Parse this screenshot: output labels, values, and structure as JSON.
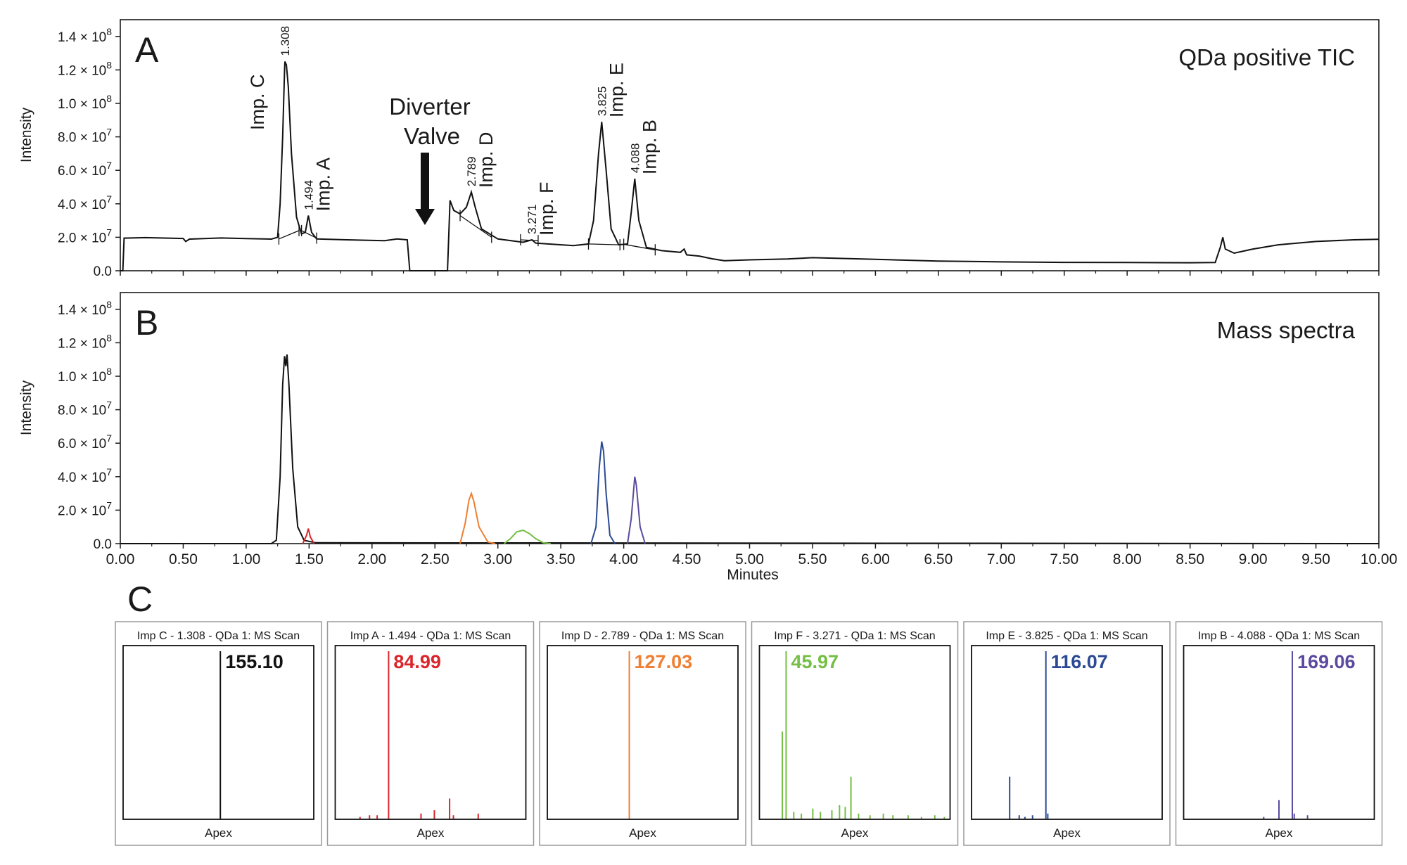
{
  "panels": {
    "a": {
      "letter": "A",
      "title": "QDa positive TIC"
    },
    "b": {
      "letter": "B",
      "title": "Mass spectra"
    },
    "c": {
      "letter": "C"
    }
  },
  "arrow": {
    "line1": "Diverter",
    "line2": "Valve"
  },
  "colors": {
    "black": "#111111",
    "red": "#d9252b",
    "orange": "#ee7f33",
    "green": "#74bf44",
    "blue": "#2b4a94",
    "purple": "#5b4a9e"
  },
  "chart_data": [
    {
      "id": "A",
      "type": "line",
      "title": "QDa positive TIC",
      "xlabel": "",
      "ylabel": "Intensity",
      "xlim": [
        0,
        10
      ],
      "ylim": [
        0,
        150000000
      ],
      "xticks": [
        "0.00",
        "0.50",
        "1.00",
        "1.50",
        "2.00",
        "2.50",
        "3.00",
        "3.50",
        "4.00",
        "4.50",
        "5.00",
        "5.50",
        "6.00",
        "6.50",
        "7.00",
        "7.50",
        "8.00",
        "8.50",
        "9.00",
        "9.50",
        "10.00"
      ],
      "yticks": [
        {
          "value": 0,
          "label": "0.0"
        },
        {
          "value": 20000000,
          "mant": "2.0",
          "exp": "7"
        },
        {
          "value": 40000000,
          "mant": "4.0",
          "exp": "7"
        },
        {
          "value": 60000000,
          "mant": "6.0",
          "exp": "7"
        },
        {
          "value": 80000000,
          "mant": "8.0",
          "exp": "7"
        },
        {
          "value": 100000000,
          "mant": "1.0",
          "exp": "8"
        },
        {
          "value": 120000000,
          "mant": "1.2",
          "exp": "8"
        },
        {
          "value": 140000000,
          "mant": "1.4",
          "exp": "8"
        }
      ],
      "series": [
        {
          "points": [
            [
              0,
              0
            ],
            [
              0.02,
              0
            ],
            [
              0.03,
              19500000
            ],
            [
              0.2,
              19800000
            ],
            [
              0.5,
              19300000
            ],
            [
              0.52,
              17500000
            ],
            [
              0.55,
              18900000
            ],
            [
              0.8,
              19600000
            ],
            [
              1.0,
              19200000
            ],
            [
              1.2,
              18900000
            ],
            [
              1.25,
              20000000
            ],
            [
              1.27,
              40000000
            ],
            [
              1.29,
              80000000
            ],
            [
              1.305,
              120000000
            ],
            [
              1.308,
              125000000
            ],
            [
              1.32,
              123000000
            ],
            [
              1.335,
              110000000
            ],
            [
              1.36,
              70000000
            ],
            [
              1.4,
              32000000
            ],
            [
              1.44,
              22000000
            ],
            [
              1.47,
              23000000
            ],
            [
              1.494,
              33000000
            ],
            [
              1.52,
              23000000
            ],
            [
              1.56,
              19000000
            ],
            [
              1.8,
              18500000
            ],
            [
              2.1,
              18000000
            ],
            [
              2.2,
              19000000
            ],
            [
              2.28,
              18500000
            ],
            [
              2.3,
              0
            ],
            [
              2.6,
              0
            ],
            [
              2.62,
              42000000
            ],
            [
              2.65,
              36000000
            ],
            [
              2.7,
              34000000
            ],
            [
              2.75,
              38000000
            ],
            [
              2.789,
              47000000
            ],
            [
              2.82,
              38000000
            ],
            [
              2.87,
              25000000
            ],
            [
              3.0,
              19000000
            ],
            [
              3.2,
              17000000
            ],
            [
              3.271,
              18500000
            ],
            [
              3.3,
              16500000
            ],
            [
              3.6,
              15000000
            ],
            [
              3.72,
              16000000
            ],
            [
              3.76,
              30000000
            ],
            [
              3.8,
              70000000
            ],
            [
              3.825,
              89000000
            ],
            [
              3.86,
              60000000
            ],
            [
              3.9,
              25000000
            ],
            [
              3.96,
              15500000
            ],
            [
              4.03,
              16000000
            ],
            [
              4.06,
              35000000
            ],
            [
              4.088,
              55000000
            ],
            [
              4.12,
              30000000
            ],
            [
              4.18,
              14000000
            ],
            [
              4.3,
              12000000
            ],
            [
              4.45,
              11000000
            ],
            [
              4.48,
              13000000
            ],
            [
              4.5,
              9500000
            ],
            [
              4.6,
              8800000
            ],
            [
              4.7,
              7200000
            ],
            [
              4.8,
              6000000
            ],
            [
              5.0,
              6500000
            ],
            [
              5.3,
              7000000
            ],
            [
              5.5,
              7800000
            ],
            [
              6.0,
              6800000
            ],
            [
              6.5,
              5800000
            ],
            [
              7.0,
              5300000
            ],
            [
              7.5,
              5000000
            ],
            [
              8.0,
              4900000
            ],
            [
              8.5,
              4800000
            ],
            [
              8.7,
              4900000
            ],
            [
              8.74,
              14000000
            ],
            [
              8.76,
              20000000
            ],
            [
              8.78,
              13000000
            ],
            [
              8.85,
              10500000
            ],
            [
              9.0,
              13000000
            ],
            [
              9.2,
              15500000
            ],
            [
              9.5,
              17500000
            ],
            [
              9.8,
              18500000
            ],
            [
              10.0,
              18800000
            ]
          ]
        }
      ],
      "baselines": [
        [
          [
            1.26,
            19000000
          ],
          [
            1.42,
            24000000
          ]
        ],
        [
          [
            1.44,
            24000000
          ],
          [
            1.56,
            19500000
          ]
        ],
        [
          [
            2.7,
            33000000
          ],
          [
            2.95,
            20000000
          ]
        ],
        [
          [
            3.18,
            18500000
          ],
          [
            3.32,
            18000000
          ]
        ],
        [
          [
            3.72,
            16000000
          ],
          [
            3.97,
            15500000
          ]
        ],
        [
          [
            4.0,
            15800000
          ],
          [
            4.25,
            12500000
          ]
        ]
      ],
      "peaks": [
        {
          "name": "Imp. C",
          "rt": "1.308",
          "x": 1.308,
          "y": 125000000
        },
        {
          "name": "Imp. A",
          "rt": "1.494",
          "x": 1.494,
          "y": 33000000
        },
        {
          "name": "Imp. D",
          "rt": "2.789",
          "x": 2.789,
          "y": 47000000
        },
        {
          "name": "Imp. F",
          "rt": "3.271",
          "x": 3.271,
          "y": 18500000
        },
        {
          "name": "Imp. E",
          "rt": "3.825",
          "x": 3.825,
          "y": 89000000
        },
        {
          "name": "Imp. B",
          "rt": "4.088",
          "x": 4.088,
          "y": 55000000
        }
      ],
      "annotations": [
        {
          "text": "Diverter Valve",
          "x": 2.45,
          "y": 28000000
        }
      ]
    },
    {
      "id": "B",
      "type": "line",
      "title": "Mass spectra",
      "xlabel": "Minutes",
      "ylabel": "Intensity",
      "xlim": [
        0,
        10
      ],
      "ylim": [
        0,
        150000000
      ],
      "xticks": [
        "0.00",
        "0.50",
        "1.00",
        "1.50",
        "2.00",
        "2.50",
        "3.00",
        "3.50",
        "4.00",
        "4.50",
        "5.00",
        "5.50",
        "6.00",
        "6.50",
        "7.00",
        "7.50",
        "8.00",
        "8.50",
        "9.00",
        "9.50",
        "10.00"
      ],
      "yticks": [
        {
          "value": 0,
          "label": "0.0"
        },
        {
          "value": 20000000,
          "mant": "2.0",
          "exp": "7"
        },
        {
          "value": 40000000,
          "mant": "4.0",
          "exp": "7"
        },
        {
          "value": 60000000,
          "mant": "6.0",
          "exp": "7"
        },
        {
          "value": 80000000,
          "mant": "8.0",
          "exp": "7"
        },
        {
          "value": 100000000,
          "mant": "1.0",
          "exp": "8"
        },
        {
          "value": 120000000,
          "mant": "1.2",
          "exp": "8"
        },
        {
          "value": 140000000,
          "mant": "1.4",
          "exp": "8"
        }
      ],
      "series": [
        {
          "color": "#111111",
          "points": [
            [
              0,
              0
            ],
            [
              1.2,
              0
            ],
            [
              1.24,
              2000000
            ],
            [
              1.27,
              40000000
            ],
            [
              1.29,
              95000000
            ],
            [
              1.305,
              112000000
            ],
            [
              1.315,
              106000000
            ],
            [
              1.325,
              113000000
            ],
            [
              1.34,
              95000000
            ],
            [
              1.37,
              45000000
            ],
            [
              1.41,
              10000000
            ],
            [
              1.46,
              2000000
            ],
            [
              1.55,
              500000
            ],
            [
              10,
              0
            ]
          ]
        },
        {
          "color": "#d9252b",
          "points": [
            [
              1.45,
              0
            ],
            [
              1.48,
              5000000
            ],
            [
              1.494,
              9000000
            ],
            [
              1.51,
              4000000
            ],
            [
              1.54,
              0
            ]
          ]
        },
        {
          "color": "#ee7f33",
          "points": [
            [
              2.7,
              0
            ],
            [
              2.74,
              12000000
            ],
            [
              2.77,
              26000000
            ],
            [
              2.789,
              30000000
            ],
            [
              2.81,
              25000000
            ],
            [
              2.85,
              10000000
            ],
            [
              2.92,
              1000000
            ],
            [
              2.98,
              0
            ]
          ]
        },
        {
          "color": "#74bf44",
          "points": [
            [
              3.05,
              0
            ],
            [
              3.1,
              3000000
            ],
            [
              3.15,
              7000000
            ],
            [
              3.2,
              8000000
            ],
            [
              3.25,
              6000000
            ],
            [
              3.3,
              3000000
            ],
            [
              3.36,
              500000
            ],
            [
              3.42,
              0
            ]
          ]
        },
        {
          "color": "#2b4a94",
          "points": [
            [
              3.74,
              0
            ],
            [
              3.78,
              10000000
            ],
            [
              3.805,
              45000000
            ],
            [
              3.825,
              61000000
            ],
            [
              3.84,
              55000000
            ],
            [
              3.86,
              30000000
            ],
            [
              3.89,
              5000000
            ],
            [
              3.93,
              0
            ]
          ]
        },
        {
          "color": "#5b4a9e",
          "points": [
            [
              4.03,
              0
            ],
            [
              4.06,
              15000000
            ],
            [
              4.088,
              40000000
            ],
            [
              4.1,
              35000000
            ],
            [
              4.13,
              10000000
            ],
            [
              4.17,
              0
            ]
          ]
        }
      ]
    },
    {
      "id": "C1",
      "type": "bar",
      "title": "Imp C - 1.308 - QDa 1: MS Scan",
      "xlabel": "Apex",
      "label": "155.10",
      "color": "#111111",
      "bars": [
        [
          0.51,
          100
        ]
      ]
    },
    {
      "id": "C2",
      "type": "bar",
      "title": "Imp A - 1.494 - QDa 1: MS Scan",
      "xlabel": "Apex",
      "label": "84.99",
      "color": "#d9252b",
      "bars": [
        [
          0.13,
          1
        ],
        [
          0.18,
          2
        ],
        [
          0.22,
          2
        ],
        [
          0.28,
          100
        ],
        [
          0.45,
          3
        ],
        [
          0.52,
          5
        ],
        [
          0.6,
          12
        ],
        [
          0.62,
          2
        ],
        [
          0.75,
          3
        ]
      ]
    },
    {
      "id": "C3",
      "type": "bar",
      "title": "Imp D - 2.789 - QDa 1: MS Scan",
      "xlabel": "Apex",
      "label": "127.03",
      "color": "#ee7f33",
      "bars": [
        [
          0.43,
          100
        ]
      ]
    },
    {
      "id": "C4",
      "type": "bar",
      "title": "Imp F - 3.271 - QDa 1: MS Scan",
      "xlabel": "Apex",
      "label": "45.97",
      "color": "#74bf44",
      "bars": [
        [
          0.12,
          52
        ],
        [
          0.14,
          100
        ],
        [
          0.18,
          4
        ],
        [
          0.22,
          3
        ],
        [
          0.28,
          6
        ],
        [
          0.32,
          4
        ],
        [
          0.38,
          5
        ],
        [
          0.42,
          8
        ],
        [
          0.45,
          7
        ],
        [
          0.48,
          25
        ],
        [
          0.52,
          3
        ],
        [
          0.58,
          2
        ],
        [
          0.65,
          3
        ],
        [
          0.7,
          2
        ],
        [
          0.78,
          2
        ],
        [
          0.85,
          1
        ],
        [
          0.92,
          2
        ],
        [
          0.97,
          1
        ]
      ]
    },
    {
      "id": "C5",
      "type": "bar",
      "title": "Imp E - 3.825 - QDa 1: MS Scan",
      "xlabel": "Apex",
      "label": "116.07",
      "color": "#2b4a94",
      "bars": [
        [
          0.2,
          25
        ],
        [
          0.25,
          2
        ],
        [
          0.28,
          1
        ],
        [
          0.32,
          2
        ],
        [
          0.39,
          100
        ],
        [
          0.4,
          3
        ]
      ]
    },
    {
      "id": "C6",
      "type": "bar",
      "title": "Imp B - 4.088 - QDa 1: MS Scan",
      "xlabel": "Apex",
      "label": "169.06",
      "color": "#5b4a9e",
      "bars": [
        [
          0.42,
          1
        ],
        [
          0.5,
          11
        ],
        [
          0.57,
          100
        ],
        [
          0.58,
          3
        ],
        [
          0.65,
          2
        ]
      ]
    }
  ]
}
